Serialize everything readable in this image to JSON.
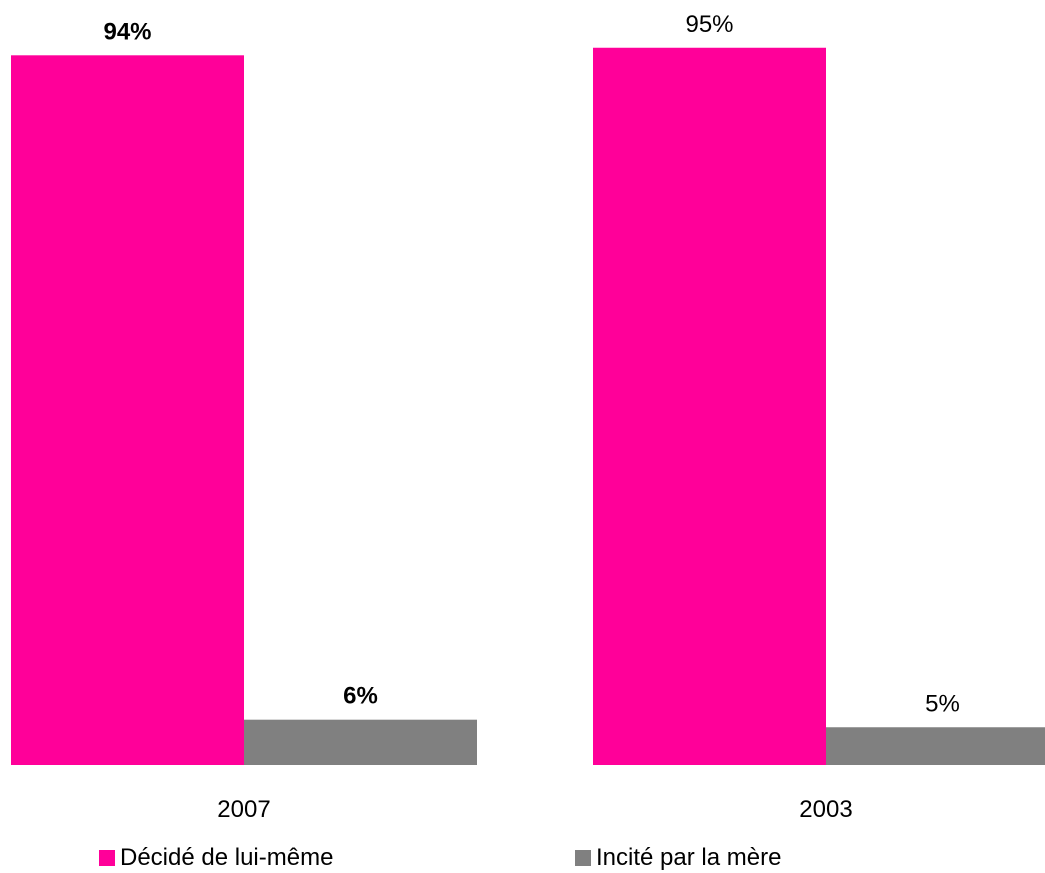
{
  "chart_data": {
    "type": "bar",
    "categories": [
      "2007",
      "2003"
    ],
    "series": [
      {
        "name": "Décidé de lui-même",
        "values": [
          94,
          95
        ],
        "labels": [
          "94%",
          "95%"
        ],
        "color": "#FF0099"
      },
      {
        "name": "Incité par la mère",
        "values": [
          6,
          5
        ],
        "labels": [
          "6%",
          "5%"
        ],
        "color": "#808080"
      }
    ],
    "bold_label_categories": [
      "2007"
    ],
    "ylim": [
      0,
      100
    ],
    "grid": false,
    "legend_position": "bottom",
    "title": "",
    "xlabel": "",
    "ylabel": ""
  }
}
